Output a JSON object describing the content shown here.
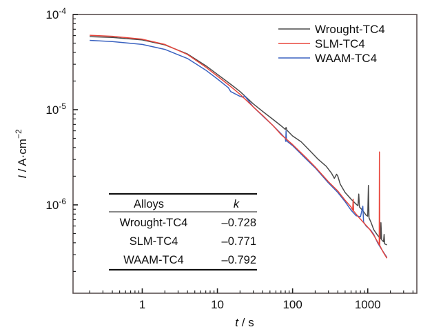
{
  "chart_data": {
    "type": "line",
    "title": "",
    "xlabel": {
      "var": "t",
      "unit": " / s"
    },
    "ylabel": {
      "var": "I",
      "unit": " / A·cm",
      "exp": "−2"
    },
    "xscale": "log",
    "yscale": "log",
    "xlim": [
      0.12,
      4500
    ],
    "ylim": [
      1.18e-07,
      0.0001
    ],
    "x_ticks": [
      {
        "value": 1,
        "label": "1"
      },
      {
        "value": 10,
        "label": "10"
      },
      {
        "value": 100,
        "label": "100"
      },
      {
        "value": 1000,
        "label": "1000"
      }
    ],
    "y_ticks": [
      {
        "value": 0.0001,
        "base": "10",
        "exp": "-4"
      },
      {
        "value": 1e-05,
        "base": "10",
        "exp": "-5"
      },
      {
        "value": 1e-06,
        "base": "10",
        "exp": "-6"
      }
    ],
    "grid": false,
    "legend": {
      "position": "top-right",
      "entries": [
        "Wrought-TC4",
        "SLM-TC4",
        "WAAM-TC4"
      ]
    },
    "series": [
      {
        "name": "Wrought-TC4",
        "color": "#4a4a4a",
        "points": [
          [
            0.2,
            5.85e-05
          ],
          [
            0.4,
            5.75e-05
          ],
          [
            1,
            5.4e-05
          ],
          [
            2,
            4.8e-05
          ],
          [
            4,
            3.85e-05
          ],
          [
            7,
            2.9e-05
          ],
          [
            10,
            2.35e-05
          ],
          [
            15,
            1.85e-05
          ],
          [
            20,
            1.55e-05
          ],
          [
            30,
            1.15e-05
          ],
          [
            40,
            9.6e-06
          ],
          [
            55,
            7.9e-06
          ],
          [
            70,
            6.8e-06
          ],
          [
            80,
            6.2e-06
          ],
          [
            82,
            6.5e-06
          ],
          [
            84,
            6.1e-06
          ],
          [
            100,
            5.3e-06
          ],
          [
            130,
            4.6e-06
          ],
          [
            170,
            3.7e-06
          ],
          [
            220,
            3e-06
          ],
          [
            280,
            2.55e-06
          ],
          [
            330,
            2.15e-06
          ],
          [
            360,
            1.9e-06
          ],
          [
            385,
            2.1e-06
          ],
          [
            400,
            2e-06
          ],
          [
            430,
            1.65e-06
          ],
          [
            500,
            1.35e-06
          ],
          [
            600,
            1.15e-06
          ],
          [
            700,
            1.02e-06
          ],
          [
            740,
            9.8e-07
          ],
          [
            760,
            1.3e-06
          ],
          [
            775,
            9.5e-07
          ],
          [
            850,
            8.8e-07
          ],
          [
            950,
            7.8e-07
          ],
          [
            1000,
            7.6e-07
          ],
          [
            1020,
            1.6e-06
          ],
          [
            1040,
            7.3e-07
          ],
          [
            1100,
            6.6e-07
          ],
          [
            1200,
            5.5e-07
          ],
          [
            1350,
            4.8e-07
          ],
          [
            1480,
            4.4e-07
          ],
          [
            1500,
            6.5e-07
          ],
          [
            1530,
            4.3e-07
          ],
          [
            1620,
            4.1e-07
          ],
          [
            1650,
            4.9e-07
          ],
          [
            1680,
            3.9e-07
          ],
          [
            1800,
            3.8e-07
          ]
        ]
      },
      {
        "name": "SLM-TC4",
        "color": "#e8463c",
        "points": [
          [
            0.2,
            6.05e-05
          ],
          [
            0.4,
            5.9e-05
          ],
          [
            1,
            5.5e-05
          ],
          [
            2,
            4.85e-05
          ],
          [
            4,
            3.8e-05
          ],
          [
            7,
            2.8e-05
          ],
          [
            10,
            2.25e-05
          ],
          [
            15,
            1.75e-05
          ],
          [
            20,
            1.45e-05
          ],
          [
            30,
            1.07e-05
          ],
          [
            40,
            8.7e-06
          ],
          [
            55,
            6.8e-06
          ],
          [
            70,
            5.5e-06
          ],
          [
            100,
            4.3e-06
          ],
          [
            150,
            3.15e-06
          ],
          [
            200,
            2.5e-06
          ],
          [
            300,
            1.75e-06
          ],
          [
            400,
            1.4e-06
          ],
          [
            500,
            1.12e-06
          ],
          [
            600,
            9.5e-07
          ],
          [
            630,
            8.8e-07
          ],
          [
            640,
            1.15e-06
          ],
          [
            650,
            8.6e-07
          ],
          [
            750,
            7.5e-07
          ],
          [
            900,
            6.4e-07
          ],
          [
            1050,
            5.6e-07
          ],
          [
            1200,
            4.8e-07
          ],
          [
            1350,
            4.1e-07
          ],
          [
            1420,
            3.8e-07
          ],
          [
            1430,
            3.6e-06
          ],
          [
            1445,
            3.75e-07
          ],
          [
            1600,
            3.2e-07
          ],
          [
            1800,
            2.75e-07
          ]
        ]
      },
      {
        "name": "WAAM-TC4",
        "color": "#3a62c0",
        "points": [
          [
            0.2,
            5.35e-05
          ],
          [
            0.4,
            5.2e-05
          ],
          [
            1,
            4.85e-05
          ],
          [
            2,
            4.3e-05
          ],
          [
            4,
            3.45e-05
          ],
          [
            7,
            2.6e-05
          ],
          [
            10,
            2.1e-05
          ],
          [
            14,
            1.7e-05
          ],
          [
            15,
            1.55e-05
          ],
          [
            20,
            1.38e-05
          ],
          [
            22,
            1.35e-05
          ],
          [
            23,
            1.4e-05
          ],
          [
            30,
            1.07e-05
          ],
          [
            40,
            8.6e-06
          ],
          [
            55,
            6.8e-06
          ],
          [
            70,
            5.6e-06
          ],
          [
            80,
            5e-06
          ],
          [
            81,
            4.65e-06
          ],
          [
            82,
            6e-06
          ],
          [
            83,
            4.7e-06
          ],
          [
            100,
            4.2e-06
          ],
          [
            150,
            3.05e-06
          ],
          [
            200,
            2.45e-06
          ],
          [
            300,
            1.7e-06
          ],
          [
            400,
            1.35e-06
          ],
          [
            500,
            1.08e-06
          ],
          [
            600,
            8.8e-07
          ],
          [
            700,
            7.7e-07
          ],
          [
            800,
            7.5e-07
          ],
          [
            860,
            9.7e-07
          ],
          [
            880,
            6.6e-07
          ],
          [
            950,
            6e-07
          ],
          [
            1100,
            5.4e-07
          ],
          [
            1200,
            4.9e-07
          ],
          [
            1350,
            4e-07
          ],
          [
            1500,
            3.5e-07
          ],
          [
            1800,
            2.8e-07
          ]
        ]
      }
    ],
    "inset_table": {
      "headers": [
        "Alloys",
        "k"
      ],
      "rows": [
        [
          "Wrought-TC4",
          "–0.728"
        ],
        [
          "SLM-TC4",
          "–0.771"
        ],
        [
          "WAAM-TC4",
          "–0.792"
        ]
      ]
    }
  }
}
